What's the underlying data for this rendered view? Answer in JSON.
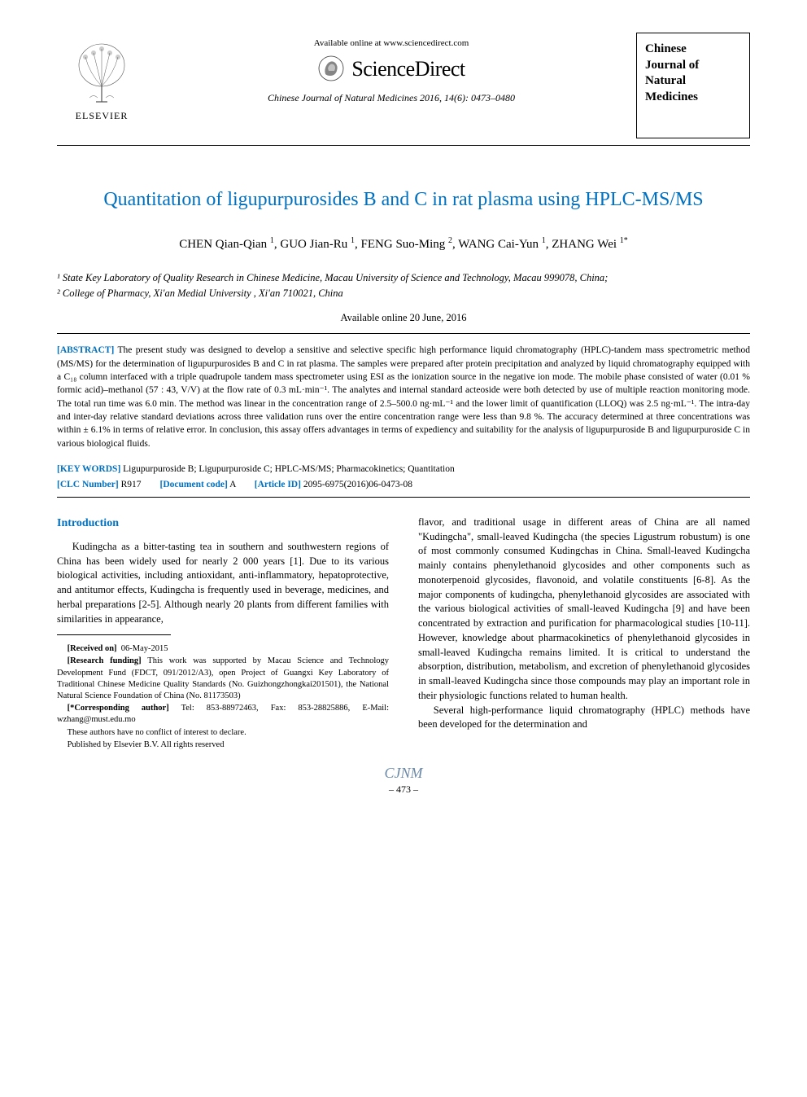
{
  "header": {
    "elsevier_label": "ELSEVIER",
    "available_online": "Available online at www.sciencedirect.com",
    "sciencedirect": "ScienceDirect",
    "journal_ref": "Chinese Journal of Natural Medicines 2016, 14(6): 0473–0480",
    "journal_box": [
      "Chinese",
      "Journal of",
      "Natural",
      "Medicines"
    ]
  },
  "title": "Quantitation of ligupurpurosides B and C in rat plasma using HPLC-MS/MS",
  "authors_html": "CHEN Qian-Qian <sup>1</sup>, GUO Jian-Ru <sup>1</sup>, FENG Suo-Ming <sup>2</sup>, WANG Cai-Yun <sup>1</sup>, ZHANG Wei <sup>1*</sup>",
  "affiliations": {
    "a1": "¹ State Key Laboratory of Quality Research in Chinese Medicine, Macau University of Science and Technology, Macau 999078, China;",
    "a2": "² College of Pharmacy, Xi'an Medial University , Xi'an 710021, China"
  },
  "available_date": "Available online 20 June, 2016",
  "abstract": {
    "label": "[ABSTRACT]",
    "text": "The present study was designed to develop a sensitive and selective specific high performance liquid chromatography (HPLC)-tandem mass spectrometric method (MS/MS) for the determination of ligupurpurosides B and C in rat plasma. The samples were prepared after protein precipitation and analyzed by liquid chromatography equipped with a C₁₈ column interfaced with a triple quadrupole tandem mass spectrometer using ESI as the ionization source in the negative ion mode. The mobile phase consisted of water (0.01 % formic acid)–methanol (57 : 43, V/V) at the flow rate of 0.3 mL·min⁻¹. The analytes and internal standard acteoside were both detected by use of multiple reaction monitoring mode. The total run time was 6.0 min. The method was linear in the concentration range of 2.5–500.0 ng·mL⁻¹ and the lower limit of quantification (LLOQ) was 2.5 ng·mL⁻¹. The intra-day and inter-day relative standard deviations across three validation runs over the entire concentration range were less than 9.8 %. The accuracy determined at three concentrations was within ± 6.1% in terms of relative error. In conclusion, this assay offers advantages in terms of expediency and suitability for the analysis of ligupurpuroside B and ligupurpuroside C in various biological fluids."
  },
  "keywords": {
    "label": "[KEY WORDS]",
    "text": "Ligupurpuroside B; Ligupurpuroside C; HPLC-MS/MS; Pharmacokinetics; Quantitation"
  },
  "meta_line": {
    "clc_label": "[CLC Number]",
    "clc_value": "R917",
    "doc_label": "[Document code]",
    "doc_value": "A",
    "article_label": "[Article ID]",
    "article_value": "2095-6975(2016)06-0473-08"
  },
  "introduction": {
    "heading": "Introduction",
    "col1_p1": "Kudingcha as a bitter-tasting tea in southern and southwestern regions of China has been widely used for nearly 2 000 years [1]. Due to its various biological activities, including antioxidant, anti-inflammatory, hepatoprotective, and antitumor effects, Kudingcha is frequently used in beverage, medicines, and herbal preparations [2-5]. Although nearly 20 plants from different families with similarities in appearance,",
    "col2_p1": "flavor, and traditional usage in different areas of China are all named \"Kudingcha\", small-leaved Kudingcha (the species Ligustrum robustum) is one of most commonly consumed Kudingchas in China. Small-leaved Kudingcha mainly contains phenylethanoid glycosides and other components such as monoterpenoid glycosides, flavonoid, and volatile constituents [6-8]. As the major components of kudingcha, phenylethanoid glycosides are associated with the various biological activities of small-leaved Kudingcha [9] and have been concentrated by extraction and purification for pharmacological studies [10-11]. However, knowledge about pharmacokinetics of phenylethanoid glycosides in small-leaved Kudingcha remains limited. It is critical to understand the absorption, distribution, metabolism, and excretion of phenylethanoid glycosides in small-leaved Kudingcha since those compounds may play an important role in their physiologic functions related to human health.",
    "col2_p2": "Several high-performance liquid chromatography (HPLC) methods have been developed for the determination and"
  },
  "footnotes": {
    "received": {
      "label": "[Received on]",
      "text": "06-May-2015"
    },
    "funding": {
      "label": "[Research funding]",
      "text": "This work was supported by Macau Science and Technology Development Fund (FDCT, 091/2012/A3), open Project of Guangxi Key Laboratory of Traditional Chinese Medicine Quality Standards (No. Guizhongzhongkai201501), the National Natural Science Foundation of China (No. 81173503)"
    },
    "corresponding": {
      "label": "[*Corresponding author]",
      "text": "Tel: 853-88972463, Fax: 853-28825886, E-Mail: wzhang@must.edu.mo"
    },
    "conflict": "These authors have no conflict of interest to declare.",
    "publisher": "Published by Elsevier B.V. All rights reserved"
  },
  "footer": {
    "logo": "CJNM",
    "page": "– 473 –"
  },
  "colors": {
    "accent": "#0070c0",
    "text": "#000000",
    "footer_logo": "#6a89a8",
    "background": "#ffffff"
  },
  "typography": {
    "title_fontsize": 24,
    "body_fontsize": 13,
    "abstract_fontsize": 11.5,
    "footnote_fontsize": 10.5,
    "font_family": "Times New Roman"
  }
}
